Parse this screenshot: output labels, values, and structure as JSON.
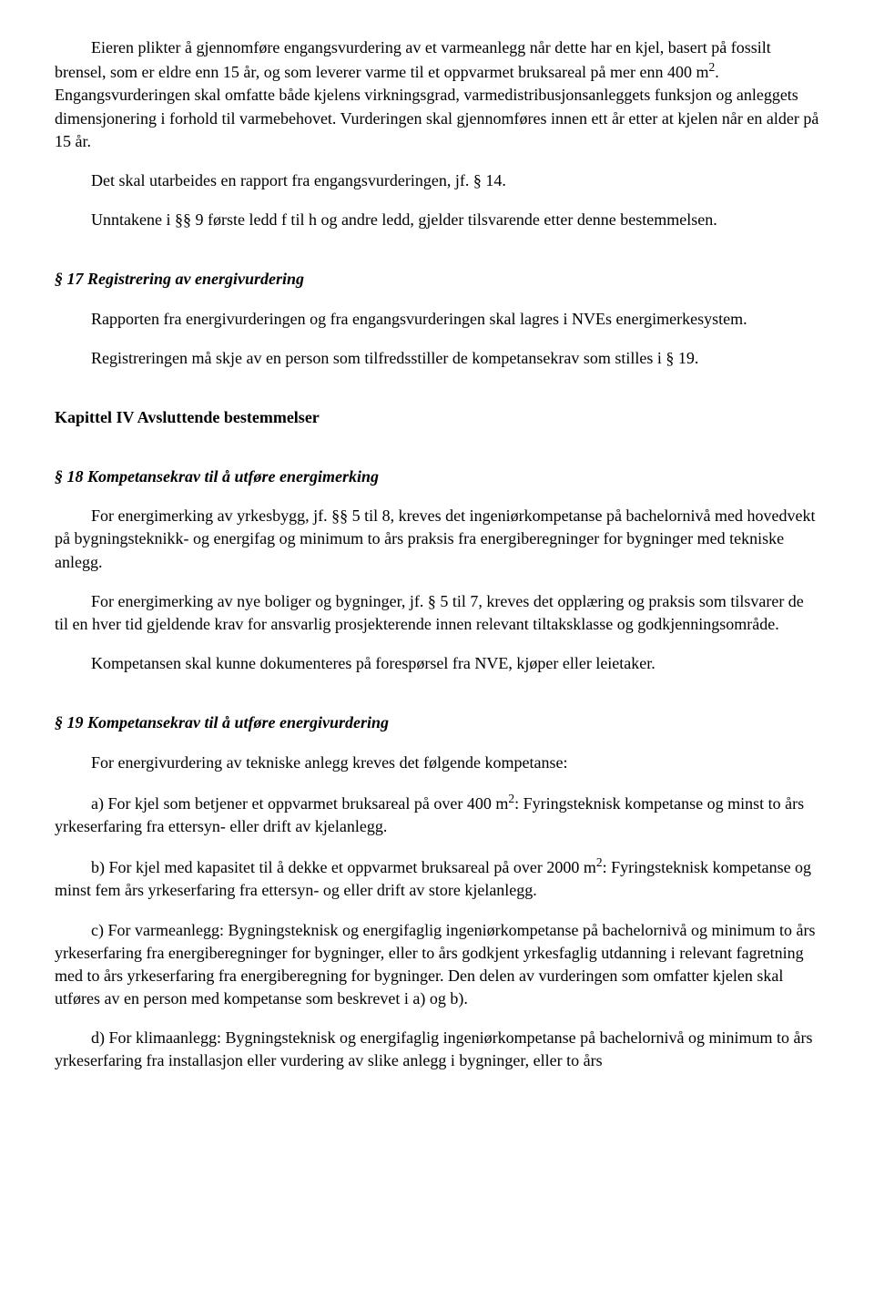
{
  "paragraphs": {
    "p1": "Eieren plikter å gjennomføre engangsvurdering av et varmeanlegg når dette har en kjel, basert på fossilt brensel, som er eldre enn 15 år, og som leverer varme til et oppvarmet bruksareal på mer enn 400 m",
    "p1_sup": "2",
    "p1_cont": ". Engangsvurderingen skal omfatte både kjelens virkningsgrad, varmedistribusjonsanleggets funksjon og anleggets dimensjonering i forhold til varmebehovet. Vurderingen skal gjennomføres innen ett år etter at kjelen når en alder på 15 år.",
    "p2": "Det skal utarbeides en rapport fra engangsvurderingen, jf. § 14.",
    "p3": "Unntakene i §§ 9 første ledd f til h og andre ledd, gjelder tilsvarende etter denne bestemmelsen."
  },
  "section17": {
    "heading": "§ 17 Registrering av energivurdering",
    "p1": "Rapporten fra energivurderingen og fra engangsvurderingen skal lagres i NVEs energimerkesystem.",
    "p2": "Registreringen må skje av en person som tilfredsstiller de kompetansekrav som stilles i § 19."
  },
  "chapter4": {
    "heading": "Kapittel IV Avsluttende bestemmelser"
  },
  "section18": {
    "heading": "§ 18 Kompetansekrav til å utføre energimerking",
    "p1": "For energimerking av yrkesbygg, jf. §§ 5 til 8, kreves det ingeniørkompetanse på bachelornivå med hovedvekt på bygningsteknikk- og energifag og minimum to års praksis fra energiberegninger for bygninger med tekniske anlegg.",
    "p2": "For energimerking av nye boliger og bygninger, jf. § 5 til 7, kreves det opplæring og praksis som tilsvarer de til en hver tid gjeldende krav for ansvarlig prosjekterende innen relevant tiltaksklasse og godkjenningsområde.",
    "p3": "Kompetansen skal kunne dokumenteres på forespørsel fra NVE, kjøper eller leietaker."
  },
  "section19": {
    "heading": "§ 19 Kompetansekrav til å utføre energivurdering",
    "p1": "For energivurdering av tekniske anlegg kreves det følgende kompetanse:",
    "p2a": "a) For kjel som betjener et oppvarmet bruksareal på over 400 m",
    "p2a_sup": "2",
    "p2a_cont": ": Fyringsteknisk kompetanse og minst to års yrkeserfaring fra ettersyn- eller drift av kjelanlegg.",
    "p2b": "b) For kjel med kapasitet til å dekke et oppvarmet bruksareal på over 2000 m",
    "p2b_sup": "2",
    "p2b_cont": ": Fyringsteknisk kompetanse og minst fem års yrkeserfaring fra ettersyn- og eller drift av store kjelanlegg.",
    "p2c": "c) For varmeanlegg: Bygningsteknisk og energifaglig ingeniørkompetanse på bachelornivå og minimum to års yrkeserfaring fra energiberegninger for bygninger, eller to års godkjent yrkesfaglig utdanning i relevant fagretning med to års yrkeserfaring fra energiberegning for bygninger. Den delen av vurderingen som omfatter kjelen skal utføres av en person med kompetanse som beskrevet i a) og b).",
    "p2d": "d) For klimaanlegg: Bygningsteknisk og energifaglig ingeniørkompetanse på bachelornivå og minimum to års yrkeserfaring fra installasjon eller vurdering av slike anlegg i bygninger, eller to års"
  }
}
